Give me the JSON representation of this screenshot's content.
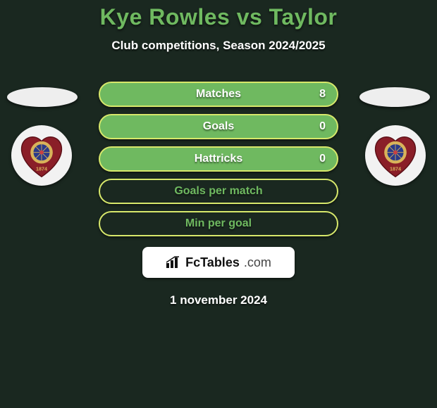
{
  "title": "Kye Rowles vs Taylor",
  "subtitle": "Club competitions, Season 2024/2025",
  "date": "1 november 2024",
  "logo": {
    "brand": "FcTables",
    "suffix": ".com"
  },
  "colors": {
    "background": "#1a2820",
    "title": "#6fb960",
    "text_light": "#ffffff"
  },
  "stats": [
    {
      "label": "Matches",
      "value": "8",
      "fill": "#6fb960",
      "border": "#d7e86b",
      "label_color": "#ffffff",
      "value_color": "#ffffff"
    },
    {
      "label": "Goals",
      "value": "0",
      "fill": "#6fb960",
      "border": "#d7e86b",
      "label_color": "#ffffff",
      "value_color": "#ffffff"
    },
    {
      "label": "Hattricks",
      "value": "0",
      "fill": "#6fb960",
      "border": "#d7e86b",
      "label_color": "#ffffff",
      "value_color": "#ffffff"
    },
    {
      "label": "Goals per match",
      "value": "",
      "fill": "#1a2820",
      "border": "#d7e86b",
      "label_color": "#6fb960",
      "value_color": "#6fb960"
    },
    {
      "label": "Min per goal",
      "value": "",
      "fill": "#1a2820",
      "border": "#d7e86b",
      "label_color": "#6fb960",
      "value_color": "#6fb960"
    }
  ],
  "crest": {
    "shield_fill": "#8a1e28",
    "center_fill": "#2a3a8a",
    "ring_fill": "#d8b35a",
    "year": "1874"
  }
}
